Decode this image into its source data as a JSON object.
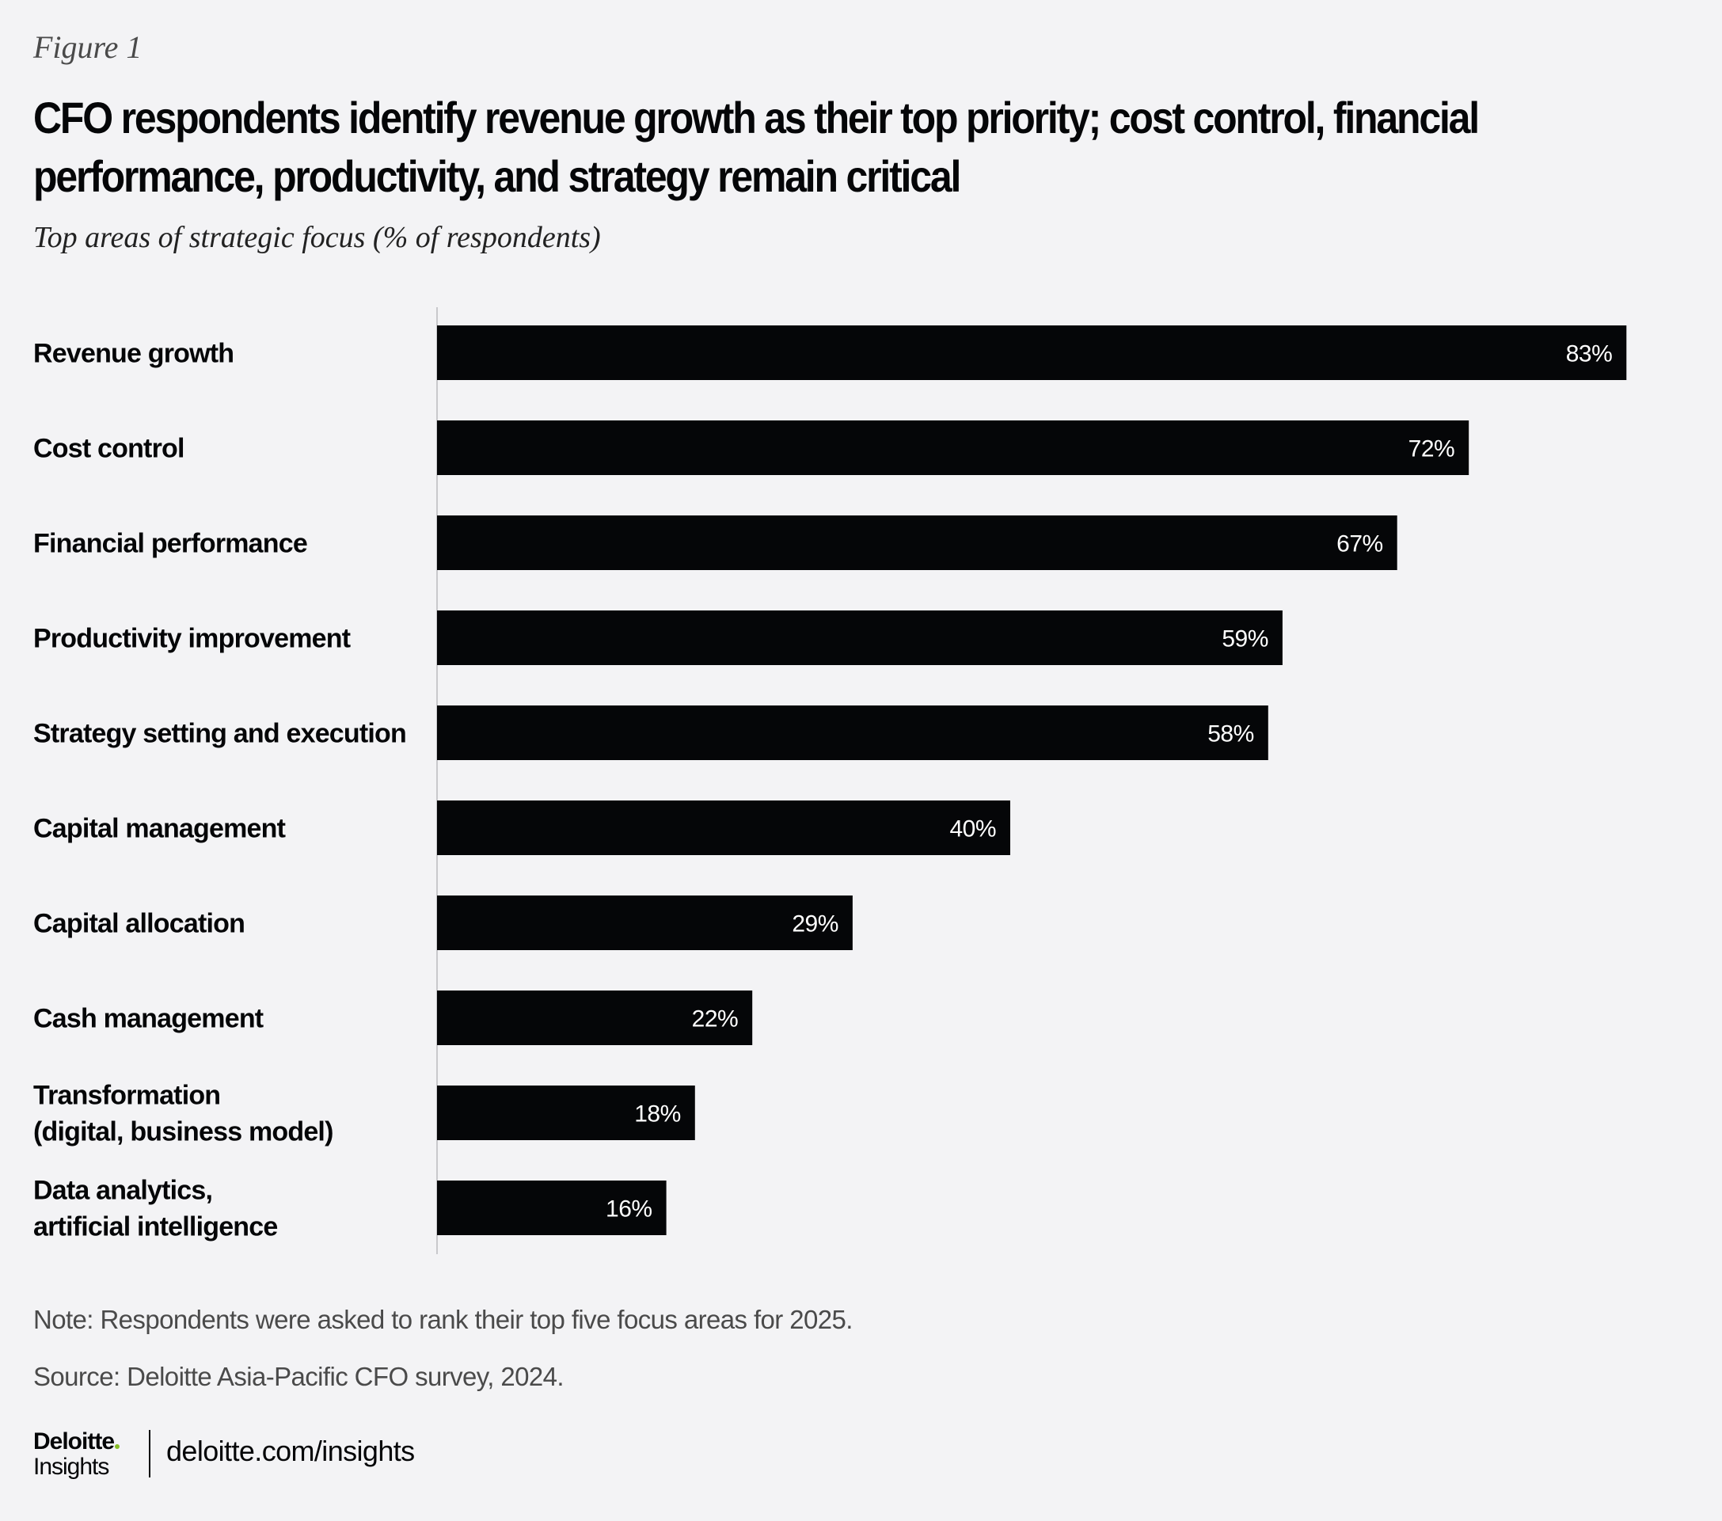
{
  "figure_label": "Figure 1",
  "title": "CFO respondents identify revenue growth as their top priority; cost control, financial performance, productivity, and strategy remain critical",
  "subtitle": "Top areas of strategic focus (% of respondents)",
  "colors": {
    "background": "#f3f3f5",
    "bar": "#050608",
    "axis": "#c8c8cc",
    "value_label": "#ffffff",
    "brand_green": "#86bc25"
  },
  "chart_data": {
    "type": "bar",
    "orientation": "horizontal",
    "title": "Top areas of strategic focus (% of respondents)",
    "xlabel": "",
    "ylabel": "",
    "unit": "%",
    "xlim": [
      0,
      100
    ],
    "grid": false,
    "legend": "none",
    "categories": [
      [
        "Revenue growth"
      ],
      [
        "Cost control"
      ],
      [
        "Financial performance"
      ],
      [
        "Productivity improvement"
      ],
      [
        "Strategy setting and execution"
      ],
      [
        "Capital management"
      ],
      [
        "Capital allocation"
      ],
      [
        "Cash management"
      ],
      [
        "Transformation",
        "(digital, business model)"
      ],
      [
        "Data analytics,",
        "artificial intelligence"
      ]
    ],
    "values": [
      83,
      72,
      67,
      59,
      58,
      40,
      29,
      22,
      18,
      16
    ],
    "data_labels": [
      "83%",
      "72%",
      "67%",
      "59%",
      "58%",
      "40%",
      "29%",
      "22%",
      "18%",
      "16%"
    ]
  },
  "footer": {
    "note": "Note: Respondents were asked to rank their top five focus areas for 2025.",
    "source": "Source: Deloitte Asia-Pacific CFO survey, 2024.",
    "logo_brand": "Deloitte",
    "logo_sub": "Insights",
    "link": "deloitte.com/insights"
  }
}
